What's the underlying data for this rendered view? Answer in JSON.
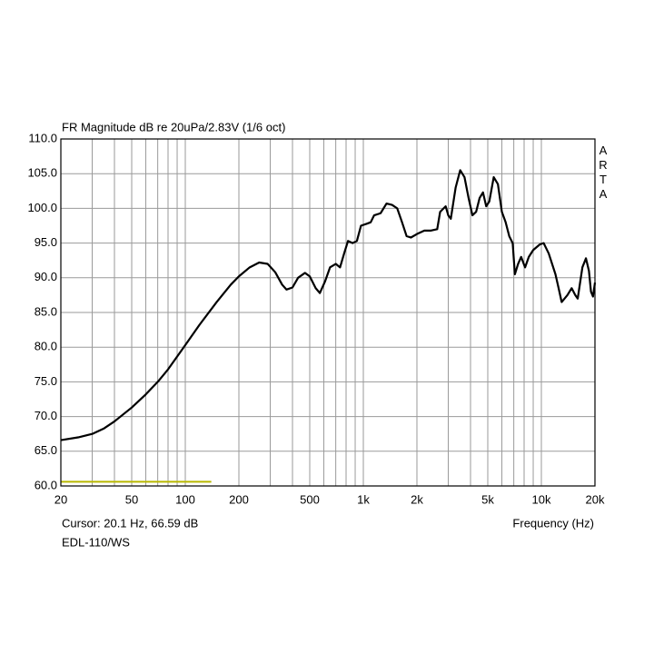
{
  "chart_data": {
    "type": "line",
    "title": "FR Magnitude dB re 20uPa/2.83V (1/6 oct)",
    "watermark": "ARTA",
    "cursor_readout": "Cursor: 20.1 Hz, 66.59 dB",
    "x_label": "Frequency (Hz)",
    "caption": "EDL-110/WS",
    "xscale": "log",
    "grid": true,
    "xlim": [
      20,
      20000
    ],
    "ylim": [
      60,
      110
    ],
    "xticks": [
      20,
      50,
      100,
      200,
      500,
      {
        "value": 1000,
        "label": "1k"
      },
      {
        "value": 2000,
        "label": "2k"
      },
      {
        "value": 5000,
        "label": "5k"
      },
      {
        "value": 10000,
        "label": "10k"
      },
      {
        "value": 20000,
        "label": "20k"
      }
    ],
    "x_minor_grid": [
      30,
      40,
      60,
      70,
      80,
      90,
      300,
      400,
      600,
      700,
      800,
      900,
      3000,
      4000,
      6000,
      7000,
      8000,
      9000
    ],
    "yticks": [
      {
        "value": 60,
        "label": "60.0"
      },
      {
        "value": 65,
        "label": "65.0"
      },
      {
        "value": 70,
        "label": "70.0"
      },
      {
        "value": 75,
        "label": "75.0"
      },
      {
        "value": 80,
        "label": "80.0"
      },
      {
        "value": 85,
        "label": "85.0"
      },
      {
        "value": 90,
        "label": "90.0"
      },
      {
        "value": 95,
        "label": "95.0"
      },
      {
        "value": 100,
        "label": "100.0"
      },
      {
        "value": 105,
        "label": "105.0"
      },
      {
        "value": 110,
        "label": "110.0"
      }
    ],
    "series": [
      {
        "color": "#000000",
        "x": [
          20,
          25,
          30,
          35,
          40,
          50,
          60,
          70,
          80,
          100,
          120,
          150,
          180,
          200,
          230,
          260,
          290,
          320,
          350,
          370,
          400,
          430,
          470,
          500,
          540,
          570,
          610,
          650,
          700,
          740,
          780,
          820,
          870,
          920,
          970,
          1050,
          1100,
          1150,
          1250,
          1350,
          1450,
          1550,
          1650,
          1750,
          1850,
          2000,
          2200,
          2400,
          2600,
          2700,
          2900,
          3000,
          3100,
          3300,
          3500,
          3700,
          3900,
          4100,
          4300,
          4500,
          4700,
          4900,
          5100,
          5400,
          5700,
          6000,
          6300,
          6600,
          6900,
          7100,
          7400,
          7700,
          8100,
          8500,
          9000,
          9800,
          10300,
          11000,
          12000,
          12500,
          13000,
          14000,
          14800,
          15500,
          16000,
          17000,
          17800,
          18500,
          19000,
          19500,
          20000
        ],
        "values": [
          66.6,
          67.0,
          67.5,
          68.3,
          69.3,
          71.3,
          73.2,
          75.0,
          76.8,
          80.3,
          83.2,
          86.5,
          89.0,
          90.2,
          91.5,
          92.2,
          92.0,
          90.8,
          89.0,
          88.3,
          88.6,
          90.0,
          90.7,
          90.2,
          88.5,
          87.8,
          89.5,
          91.5,
          92.0,
          91.5,
          93.5,
          95.3,
          95.0,
          95.3,
          97.5,
          97.8,
          98.0,
          99.0,
          99.3,
          100.7,
          100.5,
          100.0,
          98.0,
          96.0,
          95.8,
          96.3,
          96.8,
          96.8,
          97.0,
          99.5,
          100.3,
          99.0,
          98.5,
          103.0,
          105.5,
          104.5,
          101.5,
          99.0,
          99.5,
          101.5,
          102.3,
          100.3,
          101.0,
          104.5,
          103.5,
          99.5,
          98.0,
          96.0,
          95.0,
          90.5,
          92.0,
          93.0,
          91.5,
          93.0,
          94.0,
          94.8,
          95.0,
          93.5,
          90.5,
          88.5,
          86.5,
          87.5,
          88.5,
          87.5,
          87.0,
          91.5,
          92.8,
          91.0,
          88.0,
          87.3,
          89.3
        ]
      },
      {
        "color": "#b8b800",
        "x": [
          20,
          140
        ],
        "values": [
          60.6,
          60.6
        ]
      }
    ]
  }
}
